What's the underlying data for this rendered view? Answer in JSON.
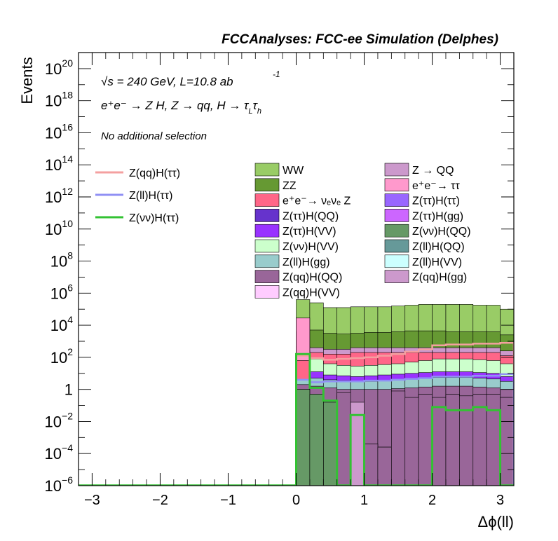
{
  "header": {
    "title": "FCCAnalyses: FCC-ee Simulation (Delphes)"
  },
  "annotations": {
    "energy_sqrt": "√s",
    "energy_text": " = 240 GeV, L=10.8 ab",
    "lumi_exp": "-1",
    "process_text": "e⁺e⁻ → Z H, Z → qq, H → τ",
    "process_sub1": "L",
    "process_tau": "τ",
    "process_sub2": "h",
    "selection": "No additional selection"
  },
  "chart_data": {
    "type": "histogram",
    "xlabel": "Δϕ(ll)",
    "ylabel": "Events",
    "xlim": [
      -3.2,
      3.2
    ],
    "ylim_log10": [
      -6,
      21
    ],
    "log_y": true,
    "grid": false,
    "x_ticks": [
      "−3",
      "−2",
      "−1",
      "0",
      "1",
      "2",
      "3"
    ],
    "x_tick_values": [
      -3,
      -2,
      -1,
      0,
      1,
      2,
      3
    ],
    "y_ticks": [
      {
        "exp": -6,
        "base": "10",
        "sup": "−6"
      },
      {
        "exp": -4,
        "base": "10",
        "sup": "−4"
      },
      {
        "exp": -2,
        "base": "10",
        "sup": "−2"
      },
      {
        "exp": 0,
        "base": "1",
        "sup": ""
      },
      {
        "exp": 2,
        "base": "10",
        "sup": "2"
      },
      {
        "exp": 4,
        "base": "10",
        "sup": "4"
      },
      {
        "exp": 6,
        "base": "10",
        "sup": "6"
      },
      {
        "exp": 8,
        "base": "10",
        "sup": "8"
      },
      {
        "exp": 10,
        "base": "10",
        "sup": "10"
      },
      {
        "exp": 12,
        "base": "10",
        "sup": "12"
      },
      {
        "exp": 14,
        "base": "10",
        "sup": "14"
      },
      {
        "exp": 16,
        "base": "10",
        "sup": "16"
      },
      {
        "exp": 18,
        "base": "10",
        "sup": "18"
      },
      {
        "exp": 20,
        "base": "10",
        "sup": "20"
      }
    ],
    "bin_width": 0.2,
    "bins_start": [
      0.0,
      0.2,
      0.4,
      0.6,
      0.8,
      1.0,
      1.2,
      1.4,
      1.6,
      1.8,
      2.0,
      2.2,
      2.4,
      2.6,
      2.8,
      3.0
    ],
    "stack_log10_tops": {
      "WW": [
        5.6,
        5.4,
        5.1,
        5.1,
        5.15,
        5.15,
        5.15,
        5.2,
        5.25,
        5.3,
        5.3,
        5.3,
        5.3,
        5.25,
        5.25,
        5.0
      ],
      "ZZ": [
        3.6,
        3.7,
        3.5,
        3.45,
        3.5,
        3.55,
        3.55,
        3.6,
        3.65,
        3.65,
        3.65,
        3.6,
        3.6,
        3.6,
        3.6,
        3.4
      ],
      "Z_QQ": [
        2.7,
        2.6,
        2.5,
        2.5,
        2.6,
        2.6,
        2.6,
        2.6,
        2.6,
        2.6,
        2.6,
        2.6,
        2.6,
        2.6,
        2.6,
        2.4
      ],
      "VV_Z": [
        2.4,
        2.3,
        2.2,
        2.2,
        2.3,
        2.3,
        2.3,
        2.3,
        2.3,
        2.3,
        2.3,
        2.3,
        2.3,
        2.3,
        2.3,
        2.1
      ],
      "ZvvH_VV": [
        2.0,
        1.9,
        1.6,
        1.5,
        1.45,
        1.5,
        1.55,
        1.6,
        1.7,
        1.8,
        1.9,
        1.9,
        1.9,
        1.85,
        1.8,
        1.6
      ],
      "ZttH_misc": [
        1.2,
        1.1,
        0.9,
        0.85,
        0.8,
        0.85,
        0.9,
        0.95,
        1.0,
        1.05,
        1.1,
        1.1,
        1.1,
        1.05,
        1.0,
        0.8
      ],
      "ZllH_gg": [
        0.8,
        0.7,
        0.6,
        0.55,
        0.5,
        0.5,
        0.55,
        0.6,
        0.65,
        0.7,
        0.75,
        0.75,
        0.75,
        0.7,
        0.65,
        0.5
      ],
      "ZqqH_QQ": [
        0.3,
        0.2,
        0.1,
        0.0,
        0.0,
        0.0,
        0.0,
        0.05,
        0.1,
        0.15,
        0.2,
        0.2,
        0.2,
        0.15,
        0.1,
        0.0
      ],
      "ZvvH_QQ": [
        0.0,
        -0.3,
        -0.8,
        -0.4,
        -1.5,
        -3.4,
        -3.6,
        -0.3,
        -0.6,
        -0.3,
        -0.7,
        -0.3,
        -0.4,
        -0.3,
        -0.3,
        -0.5
      ]
    },
    "ee_tautau_log10": [
      4.45,
      2.5,
      null,
      null,
      null,
      null,
      null,
      null,
      null,
      null,
      null,
      null,
      null,
      null,
      null,
      null
    ],
    "ee_tautau_rect": [
      0.0,
      0.2,
      1.1,
      4.45
    ],
    "pink_peak_log10": [
      1.8,
      0.6
    ],
    "purple_fill_log10_tops": [
      0.0,
      -0.2,
      -0.5,
      -0.2,
      -1.0,
      -3.4,
      -3.6,
      -0.1,
      -0.5,
      -0.3,
      -0.5,
      -0.3,
      -0.4,
      -0.3,
      -0.3,
      -0.5
    ],
    "purple_gaps": [
      [
        0.4,
        0.6
      ],
      [
        0.8,
        1.0
      ]
    ],
    "series": [
      {
        "name": "Z(qq)H(ττ)",
        "color": "#f4a0a0",
        "style": "line",
        "values_log10": [
          2.1,
          1.95,
          1.85,
          1.9,
          1.95,
          2.0,
          2.1,
          2.2,
          2.35,
          2.5,
          2.75,
          2.8,
          2.8,
          2.85,
          2.85,
          2.9
        ]
      },
      {
        "name": "Z(ll)H(ττ)",
        "color": "#9090f4",
        "style": "line",
        "values_log10": [
          0.6,
          0.45,
          0.5,
          0.5,
          0.5,
          0.55,
          0.55,
          0.6,
          0.65,
          0.7,
          0.8,
          0.8,
          0.8,
          0.85,
          0.85,
          0.95
        ]
      },
      {
        "name": "Z(νν)H(ττ)",
        "color": "#33c233",
        "style": "line",
        "values_log10": [
          2.2,
          0.1,
          -0.7,
          -6.0,
          -1.6,
          -6.0,
          -6.0,
          -6.0,
          -6.0,
          -6.0,
          -1.1,
          -1.3,
          -1.3,
          -1.1,
          -1.3,
          -6.0
        ]
      }
    ],
    "legend": {
      "left": [
        {
          "label": "Z(qq)H(ττ)",
          "color": "#f4a0a0",
          "style": "line"
        },
        {
          "label": "Z(ll)H(ττ)",
          "color": "#9090f4",
          "style": "line"
        },
        {
          "label": "Z(νν)H(ττ)",
          "color": "#33c233",
          "style": "line"
        }
      ],
      "col1": [
        {
          "label": "WW",
          "color": "#99cc66"
        },
        {
          "label": "ZZ",
          "color": "#669933"
        },
        {
          "label": "e⁺e⁻→ νₑνₑ Z",
          "color": "#ff6688"
        },
        {
          "label": "Z(ττ)H(QQ)",
          "color": "#6633cc"
        },
        {
          "label": "Z(ττ)H(VV)",
          "color": "#9933ff"
        },
        {
          "label": "Z(νν)H(VV)",
          "color": "#ccffcc"
        },
        {
          "label": "Z(ll)H(gg)",
          "color": "#99cccc"
        },
        {
          "label": "Z(qq)H(QQ)",
          "color": "#996699"
        },
        {
          "label": "Z(qq)H(VV)",
          "color": "#ffccff"
        }
      ],
      "col2": [
        {
          "label": "Z → QQ",
          "color": "#cc99cc"
        },
        {
          "label": "e⁺e⁻→ ττ",
          "color": "#ff99cc"
        },
        {
          "label": "Z(ττ)H(ττ)",
          "color": "#9966ff"
        },
        {
          "label": "Z(ττ)H(gg)",
          "color": "#cc66ff"
        },
        {
          "label": "Z(νν)H(QQ)",
          "color": "#669966"
        },
        {
          "label": "Z(ll)H(QQ)",
          "color": "#669999"
        },
        {
          "label": "Z(ll)H(VV)",
          "color": "#ccffff"
        },
        {
          "label": "Z(qq)H(gg)",
          "color": "#cc99cc"
        }
      ]
    }
  }
}
